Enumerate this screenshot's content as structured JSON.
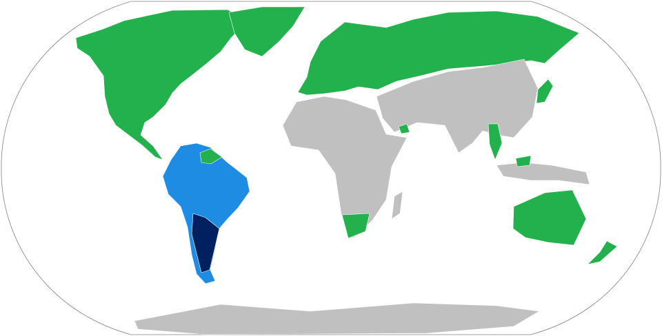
{
  "map": {
    "projection": "robinson",
    "colors": {
      "ocean": "#ffffff",
      "outline": "#808080",
      "other": "#c0c0c0",
      "green": "#22b14c",
      "light_blue": "#1e8ce3",
      "dark_blue": "#002060"
    }
  }
}
